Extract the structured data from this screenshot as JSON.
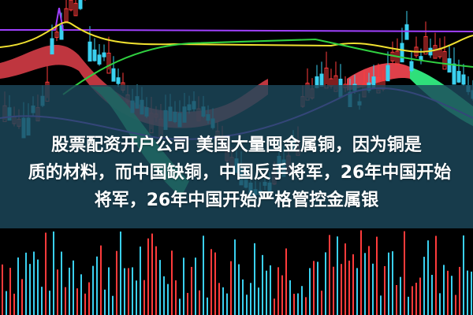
{
  "caption": {
    "line1": "股票配资开户公司 美国大量囤金属铜，因为铜是",
    "line2": "质的材料，而中国缺铜，中国反手将军，26年中国开始",
    "line3": "将军，26年中国开始严格管控金属银"
  },
  "colors": {
    "background": "#000000",
    "up_candle": "#ff3b3b",
    "down_candle": "#3ad0f0",
    "ribbon_red": "#e0404a",
    "ribbon_green": "#2fe07a",
    "line_purple": "#a040ff",
    "line_yellow": "#f0e030",
    "line_green": "#30d040",
    "overlay": "#1c485c"
  }
}
